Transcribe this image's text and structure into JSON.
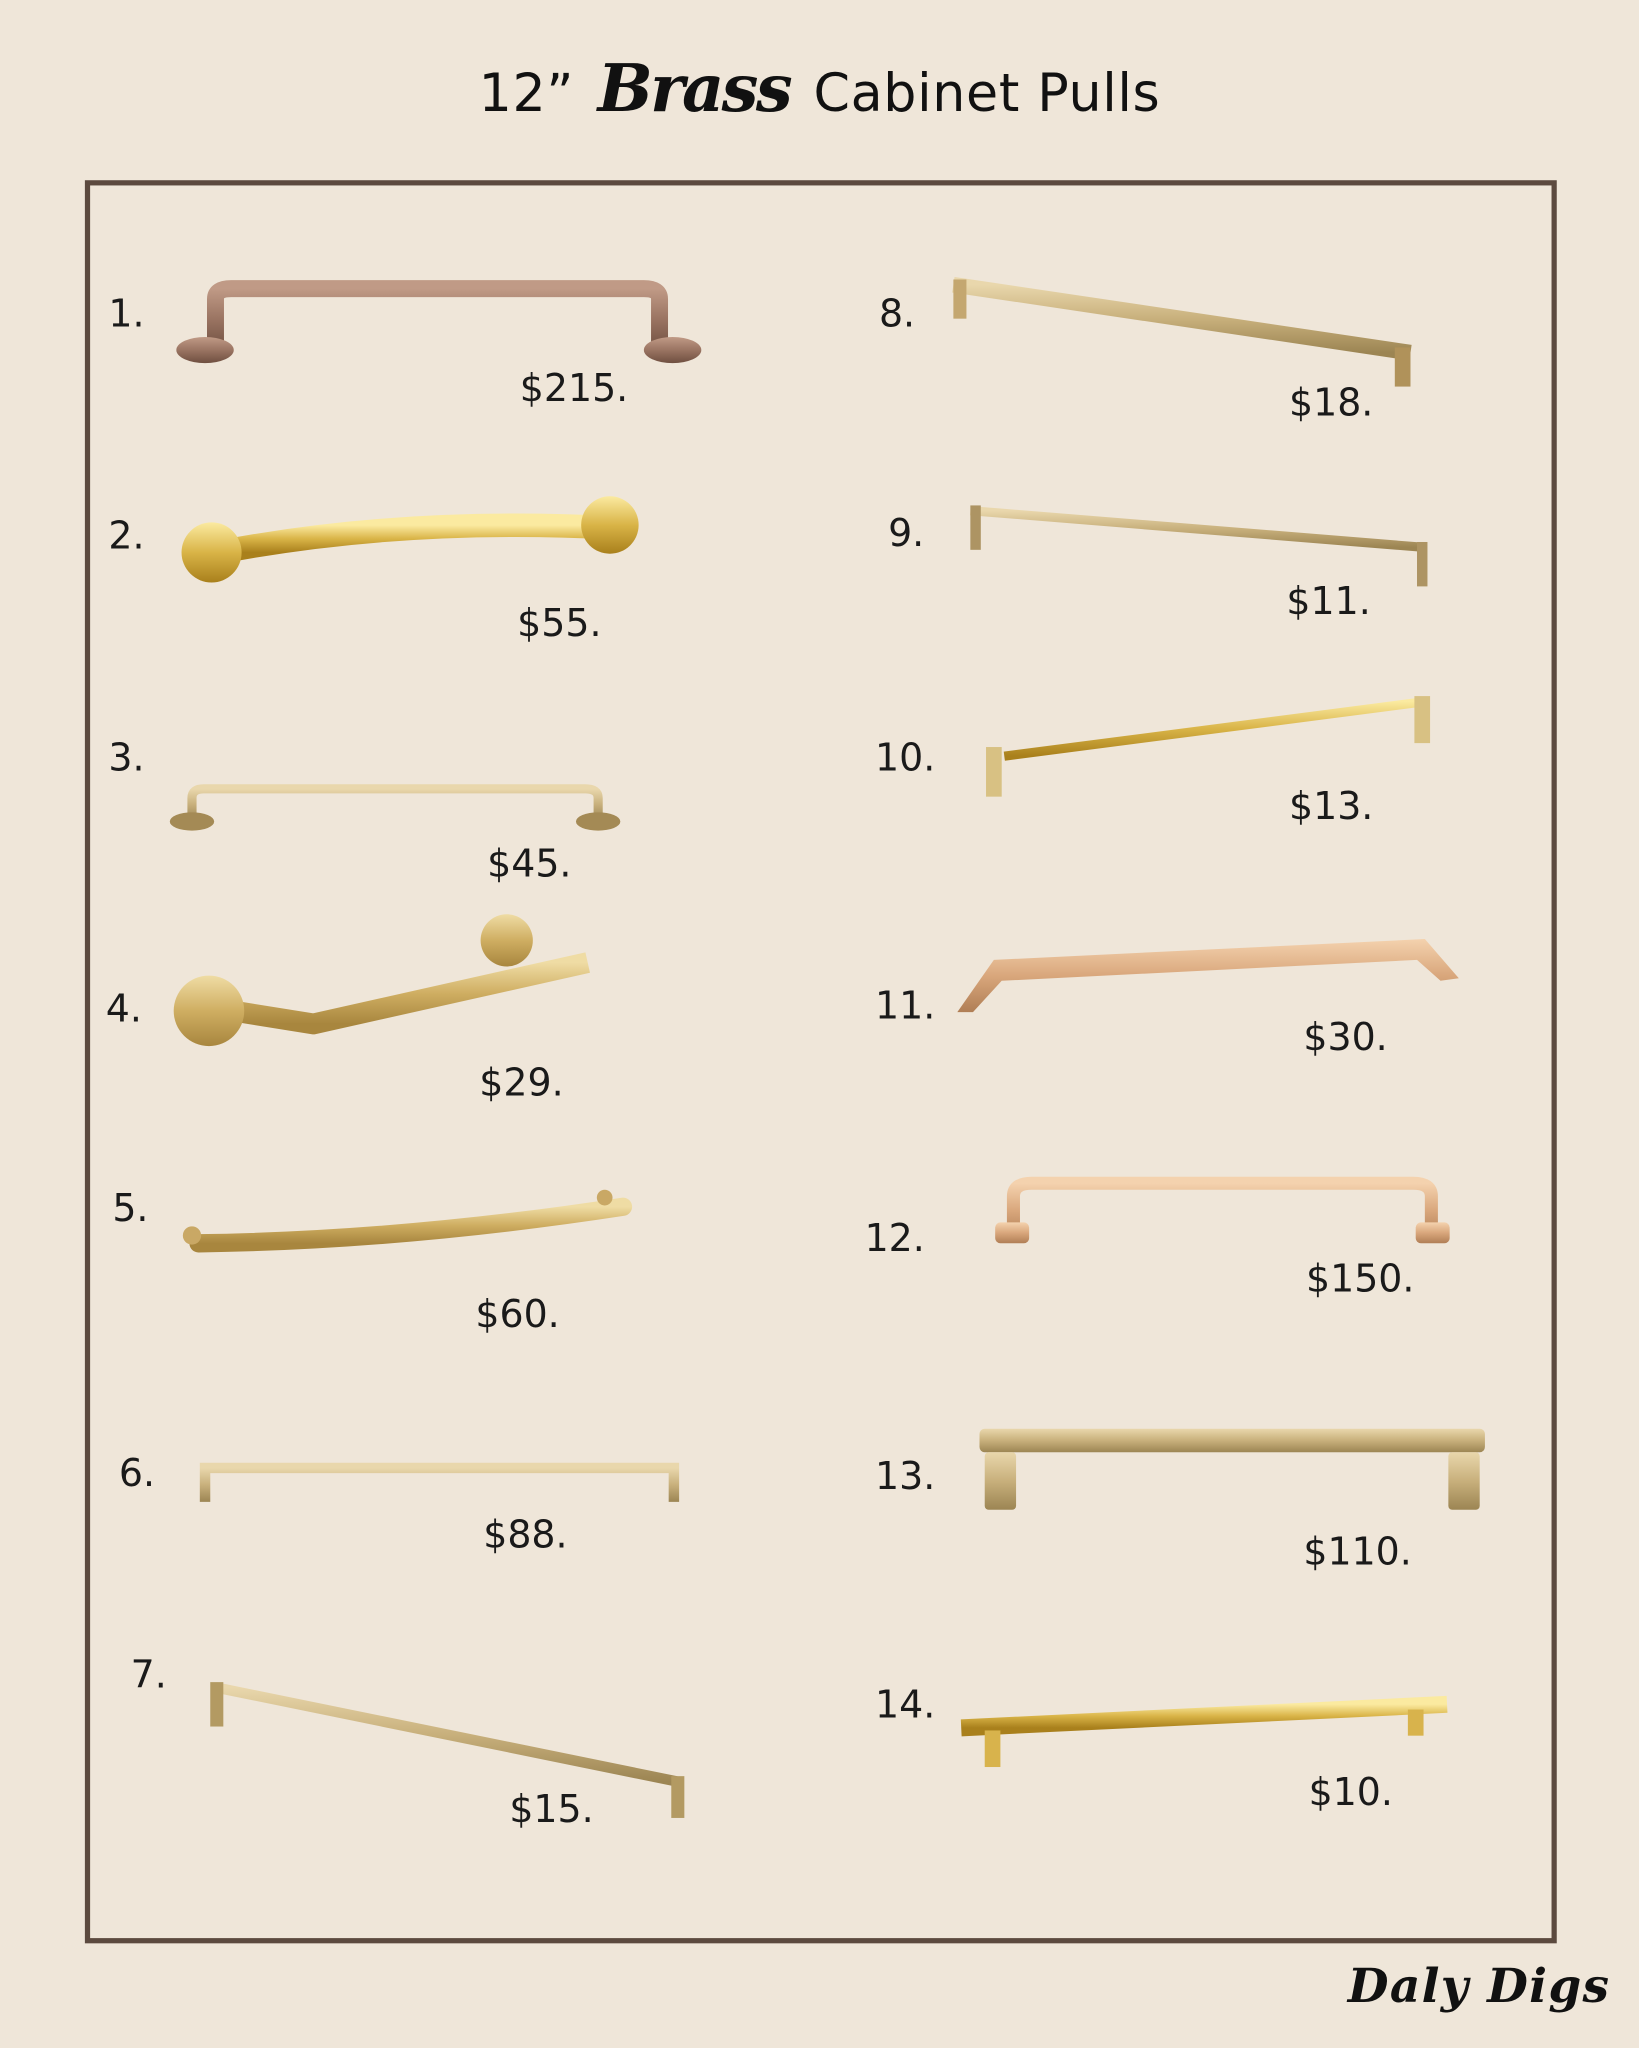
{
  "title": {
    "prefix": "12”",
    "script_word": "Brass",
    "suffix": "Cabinet Pulls"
  },
  "logo": "Daly Digs",
  "colors": {
    "background": "#efe6d9",
    "frame": "#5c4a3f",
    "brass": "#d1b270",
    "bronze": "#9a7462",
    "rose_gold": "#d9a77c"
  },
  "items": [
    {
      "number": "1.",
      "price": "$215."
    },
    {
      "number": "2.",
      "price": "$55."
    },
    {
      "number": "3.",
      "price": "$45."
    },
    {
      "number": "4.",
      "price": "$29."
    },
    {
      "number": "5.",
      "price": "$60."
    },
    {
      "number": "6.",
      "price": "$88."
    },
    {
      "number": "7.",
      "price": "$15."
    },
    {
      "number": "8.",
      "price": "$18."
    },
    {
      "number": "9.",
      "price": "$11."
    },
    {
      "number": "10.",
      "price": "$13."
    },
    {
      "number": "11.",
      "price": "$30."
    },
    {
      "number": "12.",
      "price": "$150."
    },
    {
      "number": "13.",
      "price": "$110."
    },
    {
      "number": "14.",
      "price": "$10."
    }
  ]
}
